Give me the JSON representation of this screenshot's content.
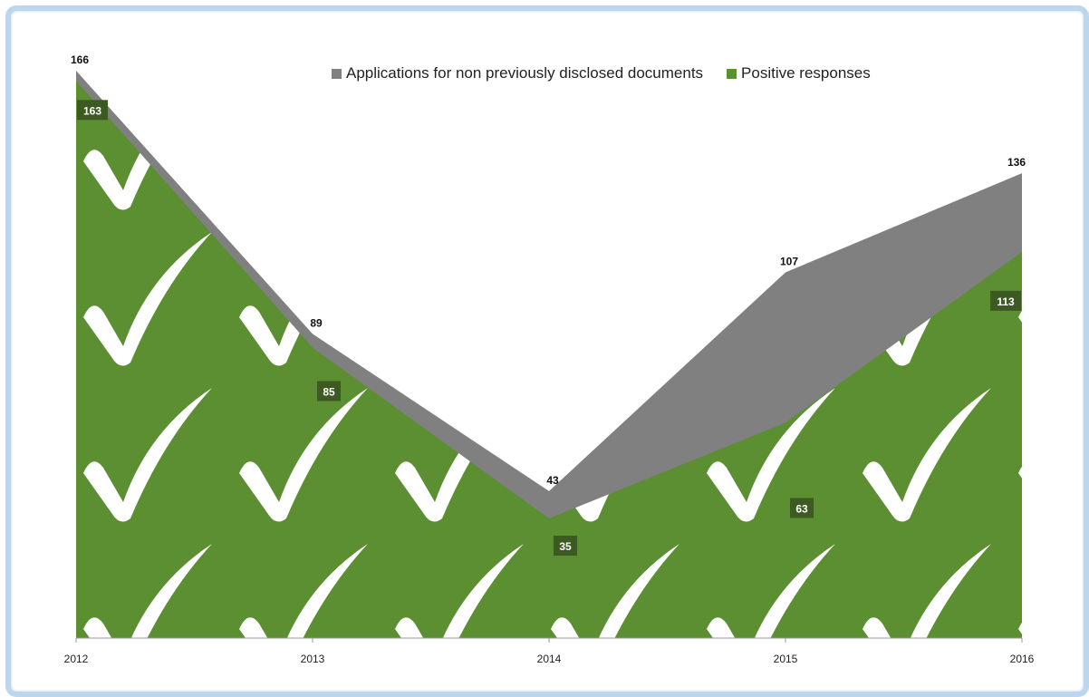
{
  "chart_data": {
    "type": "area",
    "x": [
      "2012",
      "2013",
      "2014",
      "2015",
      "2016"
    ],
    "series": [
      {
        "name": "Applications for non previously disclosed documents",
        "values": [
          166,
          89,
          43,
          107,
          136
        ],
        "color": "#808080"
      },
      {
        "name": "Positive responses",
        "values": [
          163,
          85,
          35,
          63,
          113
        ],
        "color": "#5b8f32"
      }
    ],
    "ylim": [
      0,
      166
    ],
    "legend_position": "top-right",
    "grid": false,
    "fill_pattern_icon": "checkmark-icon"
  }
}
